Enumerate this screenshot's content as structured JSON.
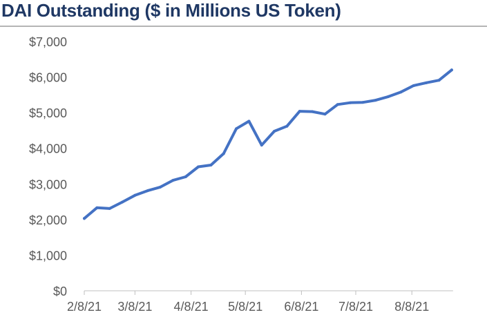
{
  "colors": {
    "title": "#1f3864",
    "line": "#4472c4",
    "axis": "#bfbfbf",
    "tick_text": "#595959"
  },
  "chart_data": {
    "type": "line",
    "title": "DAI Outstanding ($ in Millions US Token)",
    "xlabel": "",
    "ylabel": "",
    "ylim": [
      0,
      7000
    ],
    "y_ticks": [
      0,
      1000,
      2000,
      3000,
      4000,
      5000,
      6000,
      7000
    ],
    "y_tick_labels": [
      "$0",
      "$1,000",
      "$2,000",
      "$3,000",
      "$4,000",
      "$5,000",
      "$6,000",
      "$7,000"
    ],
    "x_ticks": [
      "2/8/21",
      "3/8/21",
      "4/8/21",
      "5/8/21",
      "6/8/21",
      "7/8/21",
      "8/8/21"
    ],
    "x_tick_offsets_days": [
      0,
      28,
      59,
      89,
      120,
      150,
      181
    ],
    "series": [
      {
        "name": "DAI Outstanding",
        "x_days": [
          0,
          7,
          14,
          21,
          28,
          35,
          42,
          49,
          56,
          63,
          70,
          77,
          84,
          91,
          98,
          105,
          112,
          119,
          126,
          133,
          140,
          147,
          154,
          161,
          168,
          175,
          182,
          189,
          196,
          203
        ],
        "values": [
          2030,
          2330,
          2310,
          2490,
          2680,
          2810,
          2910,
          3100,
          3200,
          3480,
          3530,
          3850,
          4550,
          4760,
          4090,
          4480,
          4620,
          5040,
          5030,
          4960,
          5230,
          5280,
          5290,
          5350,
          5450,
          5580,
          5760,
          5840,
          5910,
          6200
        ]
      }
    ]
  }
}
